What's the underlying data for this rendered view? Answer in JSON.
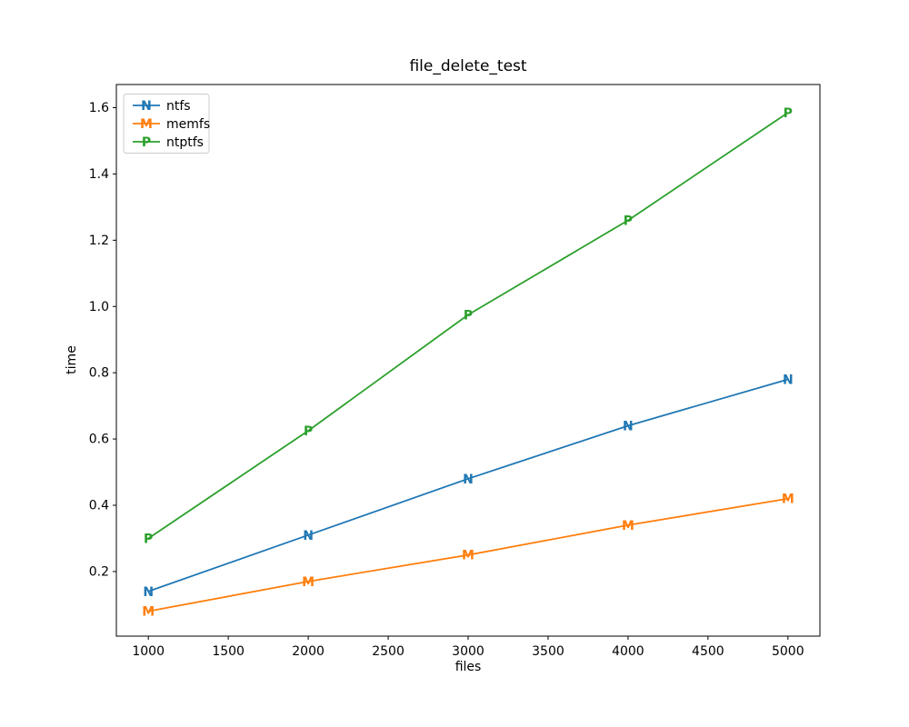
{
  "chart_data": {
    "type": "line",
    "title": "file_delete_test",
    "xlabel": "files",
    "ylabel": "time",
    "x": [
      1000,
      2000,
      3000,
      4000,
      5000
    ],
    "series": [
      {
        "name": "ntfs",
        "marker": "N",
        "color": "#1f77b4",
        "values": [
          0.14,
          0.31,
          0.48,
          0.64,
          0.78
        ]
      },
      {
        "name": "memfs",
        "marker": "M",
        "color": "#ff7f0e",
        "values": [
          0.08,
          0.17,
          0.25,
          0.34,
          0.42
        ]
      },
      {
        "name": "ntptfs",
        "marker": "P",
        "color": "#2ca02c",
        "values": [
          0.3,
          0.625,
          0.975,
          1.26,
          1.585
        ]
      }
    ],
    "xlim": [
      800,
      5200
    ],
    "ylim": [
      0.005,
      1.67
    ],
    "xticks": [
      1000,
      1500,
      2000,
      2500,
      3000,
      3500,
      4000,
      4500,
      5000
    ],
    "yticks": [
      0.2,
      0.4,
      0.6,
      0.8,
      1.0,
      1.2,
      1.4,
      1.6
    ],
    "grid": false,
    "legend_position": "upper left",
    "background_color": "#ffffff",
    "axis_color": "#000000",
    "legend_border_color": "#cccccc"
  }
}
